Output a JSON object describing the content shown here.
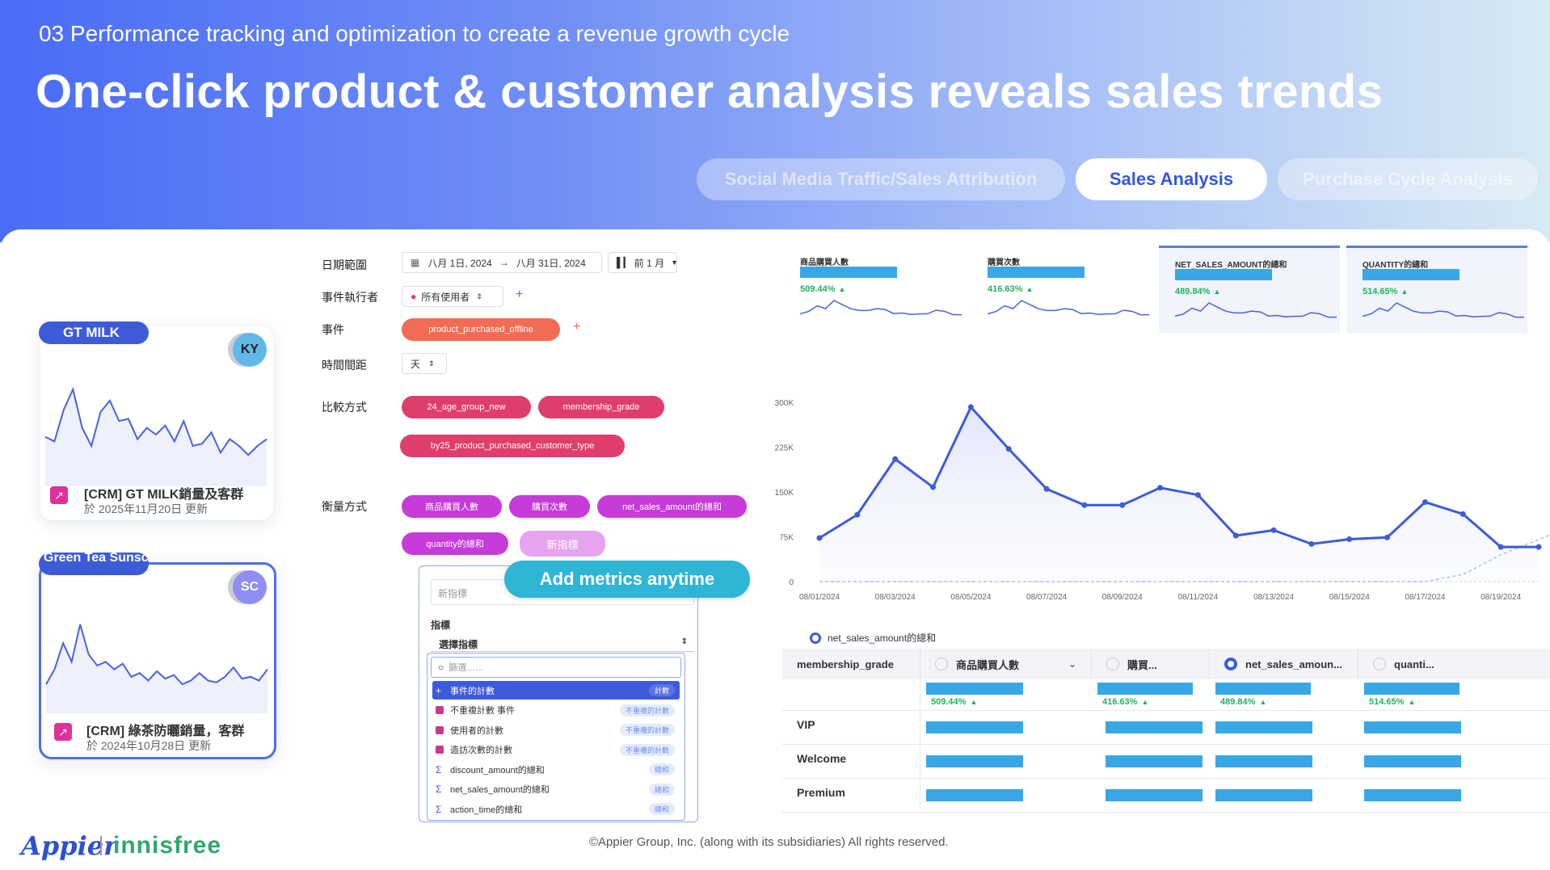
{
  "header": {
    "subtitle": "03 Performance tracking and optimization to create a revenue growth cycle",
    "title": "One-click product & customer analysis reveals sales trends",
    "tabs": [
      {
        "label": "Social Media Traffic/Sales Attribution",
        "active": false
      },
      {
        "label": "Sales Analysis",
        "active": true
      },
      {
        "label": "Purchase Cycle Analysis",
        "active": false
      }
    ]
  },
  "cards": [
    {
      "tag": "GT MILK",
      "avatar": "KY",
      "avatar_color": "#62b8e8",
      "title": "[CRM] GT MILK銷量及客群",
      "date": "於 2025年11月20日 更新",
      "series": [
        14,
        12,
        26,
        35,
        18,
        10,
        25,
        30,
        21,
        22,
        13,
        18,
        15,
        19,
        12,
        21,
        10,
        11,
        16,
        7,
        13,
        10,
        6,
        10,
        13
      ]
    },
    {
      "tag": "Green Tea Sunscree",
      "avatar": "SC",
      "avatar_color": "#8f8ef5",
      "title": "[CRM] 綠茶防曬銷量，客群",
      "date": "於 2024年10月28日 更新",
      "series": [
        6,
        14,
        28,
        18,
        38,
        22,
        16,
        18,
        14,
        17,
        10,
        12,
        8,
        13,
        9,
        11,
        6,
        8,
        12,
        8,
        7,
        10,
        15,
        9,
        10,
        8,
        14
      ]
    }
  ],
  "form": {
    "date_label": "日期範圍",
    "date_start": "八月 1日, 2024",
    "date_arrow": "→",
    "date_end": "八月 31日, 2024",
    "date_compare": "前 1 月",
    "actor_label": "事件執行者",
    "actor_value": "所有使用者",
    "event_label": "事件",
    "event_value": "product_purchased_offline",
    "interval_label": "時間間距",
    "interval_value": "天",
    "compare_label": "比較方式",
    "compare_chips": [
      "24_age_group_new",
      "membership_grade",
      "by25_product_purchased_customer_type"
    ],
    "measure_label": "衡量方式",
    "measure_chips": [
      "商品購買人數",
      "購買次數",
      "net_sales_amount的總和",
      "quantity的總和"
    ],
    "new_metric_chip": "新指標",
    "plus": "+"
  },
  "metric_dropdown": {
    "callout": "Add metrics anytime",
    "name_placeholder": "新指標",
    "section_label": "指標",
    "select_value": "選擇指標",
    "filter_placeholder": "篩選……",
    "options": [
      {
        "label": "事件的計數",
        "badge": "計數",
        "icon": "plus",
        "selected": true
      },
      {
        "label": "不重複計數 事件",
        "badge": "不重複的計數",
        "icon": "square",
        "selected": false
      },
      {
        "label": "使用者的計數",
        "badge": "不重複的計數",
        "icon": "square",
        "selected": false
      },
      {
        "label": "造訪次數的計數",
        "badge": "不重複的計數",
        "icon": "square",
        "selected": false
      },
      {
        "label": "discount_amount的總和",
        "badge": "總和",
        "icon": "sigma",
        "selected": false
      },
      {
        "label": "net_sales_amount的總和",
        "badge": "總和",
        "icon": "sigma",
        "selected": false
      },
      {
        "label": "action_time的總和",
        "badge": "總和",
        "icon": "sigma",
        "selected": false
      }
    ]
  },
  "metric_cards": [
    {
      "label": "商品購買人數",
      "change": "509.44%",
      "trend": "up",
      "highlighted": false,
      "bar": 0.55
    },
    {
      "label": "購買次數",
      "change": "416.63%",
      "trend": "up",
      "highlighted": false,
      "bar": 0.55
    },
    {
      "label": "NET_SALES_AMOUNT的總和",
      "change": "489.84%",
      "trend": "up",
      "highlighted": true,
      "bar": 0.55
    },
    {
      "label": "QUANTITY的總和",
      "change": "514.65%",
      "trend": "up",
      "highlighted": true,
      "bar": 0.55
    }
  ],
  "chart_data": {
    "type": "line",
    "series": [
      {
        "name": "net_sales_amount的總和",
        "values": [
          73000,
          112000,
          205000,
          158000,
          292000,
          222000,
          155000,
          128000,
          128000,
          157000,
          145000,
          77000,
          86000,
          63000,
          71000,
          74000,
          133000,
          113000,
          58000,
          58000
        ]
      }
    ],
    "comparison_values": [
      0,
      0,
      0,
      0,
      0,
      0,
      0,
      0,
      0,
      0,
      0,
      0,
      0,
      0,
      0,
      0,
      0,
      12000,
      45000,
      78000
    ],
    "x_tick_labels": [
      "08/01/2024",
      "08/03/2024",
      "08/05/2024",
      "08/07/2024",
      "08/09/2024",
      "08/11/2024",
      "08/13/2024",
      "08/15/2024",
      "08/17/2024",
      "08/19/2024"
    ],
    "y_tick_labels": [
      "300K",
      "225K",
      "150K",
      "75K",
      "0"
    ],
    "ylim": [
      0,
      300000
    ],
    "legend": "net_sales_amount的總和",
    "legend_position": "bottom-left",
    "grid": false,
    "color": "#3d5bd9"
  },
  "table": {
    "first_header": "membership_grade",
    "headers": [
      {
        "label": "商品購買人數",
        "radio": false,
        "chevron": true
      },
      {
        "label": "購買...",
        "radio": false,
        "chevron": false
      },
      {
        "label": "net_sales_amoun...",
        "radio": true,
        "chevron": false
      },
      {
        "label": "quanti...",
        "radio": false,
        "chevron": false
      }
    ],
    "summary": [
      "509.44%",
      "416.63%",
      "489.84%",
      "514.65%"
    ],
    "rows": [
      "VIP",
      "Welcome",
      "Premium"
    ]
  },
  "footer": {
    "logo": "Appier",
    "brand": "innisfree",
    "copyright": "©Appier Group, Inc. (along with its subsidiaries) All rights reserved."
  }
}
